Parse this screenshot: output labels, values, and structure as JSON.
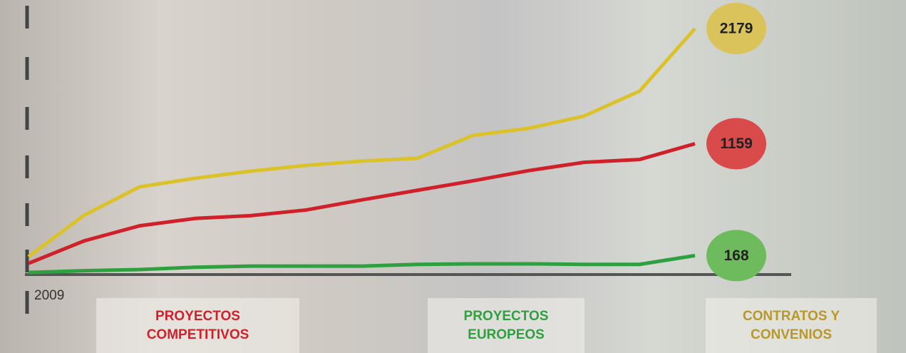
{
  "chart_data": {
    "type": "line",
    "categories": [
      "2009",
      null,
      null,
      null,
      null,
      null,
      null,
      null,
      null,
      null,
      null,
      null,
      null
    ],
    "ylim": [
      0,
      2400
    ],
    "series": [
      {
        "name": "PROYECTOS COMPETITIVOS",
        "color": "#d0202a",
        "label_color": "#d94a4a",
        "values": [
          99,
          298,
          432,
          497,
          522,
          572,
          661,
          746,
          830,
          920,
          994,
          1019,
          1159
        ]
      },
      {
        "name": "PROYECTOS EUROPEOS",
        "color": "#2fa040",
        "label_color": "#6dbb5c",
        "values": [
          18,
          34,
          44,
          65,
          75,
          75,
          75,
          90,
          95,
          95,
          90,
          90,
          168
        ]
      },
      {
        "name": "CONTRATOS Y CONVENIOS",
        "color": "#dcc22a",
        "label_color": "#d9c35a",
        "values": [
          158,
          525,
          777,
          853,
          916,
          967,
          1005,
          1030,
          1232,
          1295,
          1403,
          1624,
          2179
        ]
      }
    ]
  }
}
